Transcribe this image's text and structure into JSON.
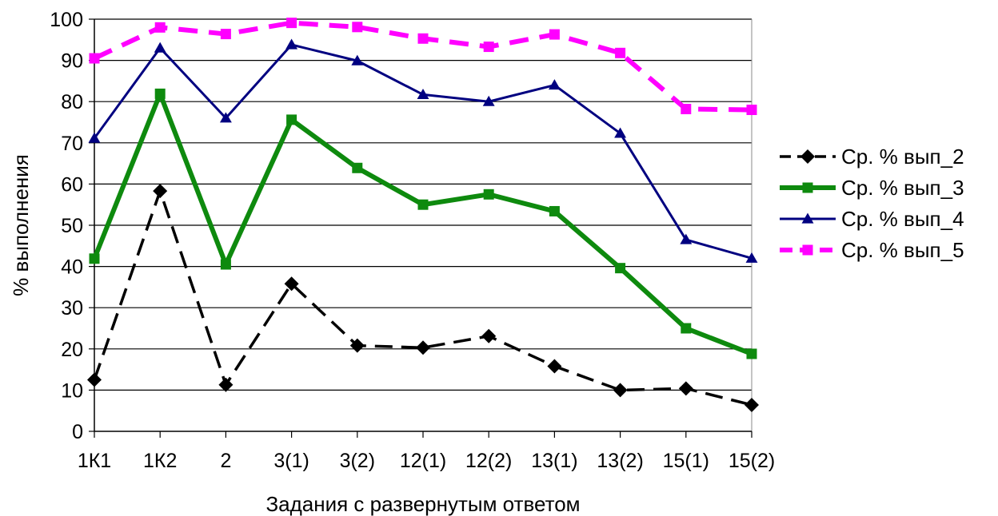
{
  "chart_data": {
    "type": "line",
    "title": "",
    "xlabel": "Задания с развернутым ответом",
    "ylabel": "% выполнения",
    "ylim": [
      0,
      100
    ],
    "yticks": [
      0,
      10,
      20,
      30,
      40,
      50,
      60,
      70,
      80,
      90,
      100
    ],
    "grid": "horizontal",
    "legend_position": "right",
    "categories": [
      "1К1",
      "1К2",
      "2",
      "3(1)",
      "3(2)",
      "12(1)",
      "12(2)",
      "13(1)",
      "13(2)",
      "15(1)",
      "15(2)"
    ],
    "series": [
      {
        "name": "Ср. % вып_2",
        "color": "#000000",
        "line_style": "dashed",
        "marker": "diamond",
        "values": [
          12.5,
          58.3,
          11.3,
          35.8,
          20.8,
          20.3,
          23.1,
          15.8,
          10.0,
          10.4,
          6.4
        ]
      },
      {
        "name": "Ср. % вып_3",
        "color": "#0E8A0E",
        "line_style": "solid-thick",
        "marker": "square",
        "values": [
          41.9,
          81.9,
          40.5,
          75.6,
          63.9,
          55.0,
          57.5,
          53.4,
          39.6,
          25.0,
          18.8
        ]
      },
      {
        "name": "Ср. % вып_4",
        "color": "#000080",
        "line_style": "solid",
        "marker": "triangle",
        "values": [
          71.1,
          93.0,
          76.0,
          93.8,
          89.9,
          81.7,
          80.0,
          84.0,
          72.3,
          46.5,
          42.0
        ]
      },
      {
        "name": "Ср. % вып_5",
        "color": "#FF00FF",
        "line_style": "dashed-thick",
        "marker": "square",
        "values": [
          90.5,
          98.0,
          96.4,
          99.1,
          98.1,
          95.3,
          93.3,
          96.3,
          91.8,
          78.2,
          78.0
        ]
      }
    ]
  }
}
